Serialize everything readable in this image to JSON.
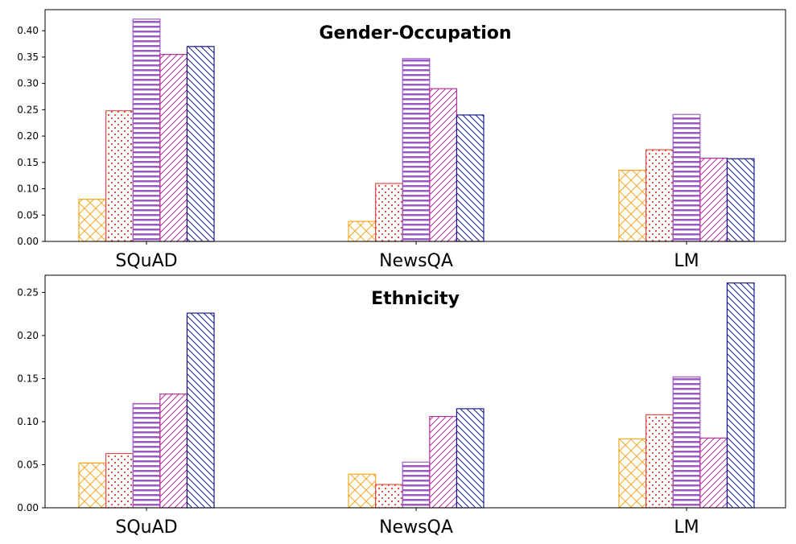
{
  "chart_data": [
    {
      "type": "bar",
      "title": "Gender-Occupation",
      "xlabel": "",
      "ylabel": "",
      "categories": [
        "SQuAD",
        "NewsQA",
        "LM"
      ],
      "ylim": [
        0,
        0.44
      ],
      "yticks": [
        "0.00",
        "0.05",
        "0.10",
        "0.15",
        "0.20",
        "0.25",
        "0.30",
        "0.35",
        "0.40"
      ],
      "grid": false,
      "series": [
        {
          "values": [
            0.08,
            0.038,
            0.135
          ],
          "color": "#f5a623",
          "hatch": "cross"
        },
        {
          "values": [
            0.248,
            0.11,
            0.174
          ],
          "color": "#e0504a",
          "hatch": "dots"
        },
        {
          "values": [
            0.422,
            0.347,
            0.241
          ],
          "color": "#9b59c6",
          "hatch": "horizontal"
        },
        {
          "values": [
            0.355,
            0.29,
            0.158
          ],
          "color": "#b8309e",
          "hatch": "forward-diagonal"
        },
        {
          "values": [
            0.37,
            0.24,
            0.157
          ],
          "color": "#1a1a8c",
          "hatch": "back-diagonal"
        }
      ]
    },
    {
      "type": "bar",
      "title": "Ethnicity",
      "xlabel": "",
      "ylabel": "",
      "categories": [
        "SQuAD",
        "NewsQA",
        "LM"
      ],
      "ylim": [
        0,
        0.27
      ],
      "yticks": [
        "0.00",
        "0.05",
        "0.10",
        "0.15",
        "0.20",
        "0.25"
      ],
      "grid": false,
      "series": [
        {
          "values": [
            0.052,
            0.039,
            0.08
          ],
          "color": "#f5a623",
          "hatch": "cross"
        },
        {
          "values": [
            0.063,
            0.027,
            0.108
          ],
          "color": "#e0504a",
          "hatch": "dots"
        },
        {
          "values": [
            0.121,
            0.053,
            0.152
          ],
          "color": "#9b59c6",
          "hatch": "horizontal"
        },
        {
          "values": [
            0.132,
            0.106,
            0.081
          ],
          "color": "#b8309e",
          "hatch": "forward-diagonal"
        },
        {
          "values": [
            0.226,
            0.115,
            0.261
          ],
          "color": "#1a1a8c",
          "hatch": "back-diagonal"
        }
      ]
    }
  ]
}
